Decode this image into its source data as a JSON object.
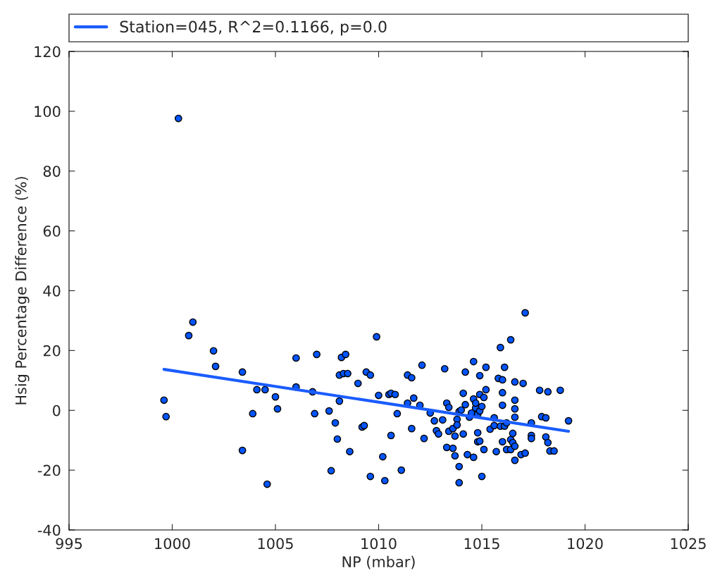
{
  "chart_data": {
    "type": "scatter",
    "xlabel": "NP (mbar)",
    "ylabel": "Hsig Percentage Difference (%)",
    "xlim": [
      995,
      1025
    ],
    "xticks": [
      995,
      1000,
      1005,
      1010,
      1015,
      1020,
      1025
    ],
    "ylim": [
      -40,
      120
    ],
    "yticks": [
      -40,
      -20,
      0,
      20,
      40,
      60,
      80,
      100,
      120
    ],
    "grid": false,
    "legend": "top",
    "series": [
      {
        "marker": "circle",
        "color": "#0055ff",
        "x": [
          1000.3,
          999.6,
          999.7,
          1000.8,
          1001.0,
          1002.0,
          1002.1,
          1003.4,
          1003.4,
          1003.9,
          1004.1,
          1004.5,
          1004.6,
          1005.0,
          1005.1,
          1006.0,
          1006.0,
          1006.9,
          1007.0,
          1006.8,
          1007.6,
          1007.7,
          1007.9,
          1008.0,
          1008.1,
          1008.1,
          1008.2,
          1008.4,
          1008.3,
          1008.5,
          1008.6,
          1009.0,
          1009.2,
          1009.3,
          1009.4,
          1009.6,
          1009.6,
          1009.9,
          1010.0,
          1010.2,
          1010.3,
          1010.5,
          1010.6,
          1010.8,
          1010.6,
          1010.9,
          1011.1,
          1011.4,
          1011.4,
          1011.6,
          1011.6,
          1011.7,
          1012.0,
          1012.1,
          1012.2,
          1012.5,
          1012.7,
          1012.8,
          1012.9,
          1013.1,
          1013.2,
          1013.3,
          1013.4,
          1013.3,
          1013.4,
          1013.6,
          1013.8,
          1013.8,
          1013.6,
          1013.7,
          1013.7,
          1013.9,
          1014.0,
          1013.9,
          1013.9,
          1014.1,
          1014.1,
          1014.2,
          1014.2,
          1014.3,
          1014.4,
          1014.5,
          1014.6,
          1014.6,
          1014.6,
          1014.7,
          1014.7,
          1014.8,
          1014.9,
          1014.8,
          1014.9,
          1014.9,
          1015.0,
          1014.8,
          1014.9,
          1015.0,
          1015.1,
          1015.1,
          1015.2,
          1015.2,
          1015.4,
          1015.6,
          1015.6,
          1015.7,
          1015.8,
          1015.9,
          1015.9,
          1016.4,
          1016.0,
          1016.0,
          1016.0,
          1016.1,
          1016.1,
          1016.0,
          1016.2,
          1016.2,
          1016.4,
          1016.4,
          1016.5,
          1016.5,
          1016.6,
          1016.6,
          1016.6,
          1016.6,
          1016.6,
          1016.6,
          1016.9,
          1017.1,
          1017.0,
          1017.1,
          1017.4,
          1017.4,
          1017.4,
          1017.8,
          1017.9,
          1018.1,
          1018.1,
          1018.2,
          1018.2,
          1018.3,
          1018.5,
          1018.8,
          1019.2
        ],
        "values": [
          97.6,
          3.4,
          -2.1,
          25.0,
          29.5,
          19.9,
          14.7,
          12.8,
          -13.4,
          -1.1,
          6.9,
          6.9,
          -24.7,
          4.5,
          0.5,
          7.8,
          17.5,
          -1.1,
          18.7,
          6.2,
          -0.2,
          -20.2,
          -4.2,
          -9.6,
          11.8,
          3.1,
          17.7,
          18.7,
          12.3,
          12.3,
          -13.8,
          9.0,
          -5.6,
          -5.1,
          12.8,
          11.8,
          -22.1,
          24.6,
          5.0,
          -15.5,
          -23.5,
          5.3,
          5.7,
          5.3,
          -8.4,
          -1.1,
          -20.0,
          2.4,
          11.8,
          10.9,
          -6.1,
          4.1,
          1.7,
          15.1,
          -9.4,
          -0.9,
          -3.5,
          -6.8,
          -7.9,
          -3.2,
          13.9,
          2.4,
          1.0,
          -12.4,
          -7.0,
          -6.1,
          -3.0,
          -4.9,
          -12.7,
          -15.2,
          -8.6,
          -0.4,
          0.1,
          -18.8,
          -24.2,
          5.7,
          -7.9,
          12.8,
          1.9,
          -14.8,
          -2.3,
          -0.9,
          3.8,
          -15.7,
          16.3,
          0.8,
          2.4,
          -1.3,
          -0.2,
          -7.5,
          11.6,
          5.3,
          1.3,
          -10.5,
          -10.3,
          -22.1,
          -13.1,
          4.3,
          14.4,
          6.9,
          -6.3,
          -2.5,
          -5.1,
          -13.8,
          10.7,
          -5.3,
          21.0,
          23.6,
          1.7,
          10.2,
          5.9,
          14.4,
          -5.3,
          -10.5,
          -13.1,
          -4.2,
          -9.8,
          -13.1,
          -7.7,
          -10.8,
          -12.0,
          9.5,
          3.4,
          0.5,
          -2.3,
          -16.7,
          -14.8,
          -14.3,
          9.0,
          32.6,
          -4.2,
          -8.4,
          -9.4,
          6.7,
          -2.1,
          -2.5,
          -8.9,
          -10.8,
          6.2,
          -13.6,
          -13.6,
          6.7,
          -3.5
        ]
      },
      {
        "type": "line",
        "name": "Station=045, R^2=0.1166, p=0.0",
        "color": "#1a5cff",
        "x": [
          999.6,
          1019.2
        ],
        "values": [
          13.7,
          -7.0
        ]
      }
    ]
  }
}
